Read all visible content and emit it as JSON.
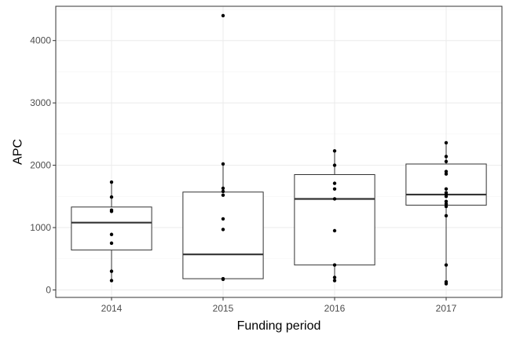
{
  "chart_data": {
    "type": "box",
    "title": "",
    "xlabel": "Funding period",
    "ylabel": "APC",
    "categories": [
      "2014",
      "2015",
      "2016",
      "2017"
    ],
    "y_ticks": [
      0,
      1000,
      2000,
      3000,
      4000
    ],
    "ylim": [
      -120,
      4550
    ],
    "grid": true,
    "boxes": [
      {
        "category": "2014",
        "q1": 640,
        "median": 1080,
        "q3": 1330,
        "whisker_low": 150,
        "whisker_high": 1730
      },
      {
        "category": "2015",
        "q1": 180,
        "median": 570,
        "q3": 1570,
        "whisker_low": 170,
        "whisker_high": 2020
      },
      {
        "category": "2016",
        "q1": 400,
        "median": 1460,
        "q3": 1850,
        "whisker_low": 150,
        "whisker_high": 2230
      },
      {
        "category": "2017",
        "q1": 1360,
        "median": 1530,
        "q3": 2020,
        "whisker_low": 100,
        "whisker_high": 2360
      }
    ],
    "points": [
      {
        "category": "2014",
        "values": [
          1730,
          1490,
          1280,
          1260,
          890,
          750,
          300,
          150
        ]
      },
      {
        "category": "2015",
        "values": [
          4400,
          2020,
          1630,
          1580,
          1520,
          1140,
          970,
          180,
          170
        ]
      },
      {
        "category": "2016",
        "values": [
          2230,
          2000,
          1710,
          1620,
          1460,
          950,
          400,
          200,
          150
        ]
      },
      {
        "category": "2017",
        "values": [
          2360,
          2140,
          2060,
          1900,
          1860,
          1620,
          1560,
          1530,
          1500,
          1420,
          1380,
          1340,
          1190,
          400,
          130,
          100
        ]
      }
    ],
    "colors": {
      "background": "#ffffff",
      "grid_major": "#ebebeb",
      "grid_minor": "#f5f5f5",
      "box_outline": "#333333",
      "median": "#333333",
      "points": "#000000",
      "panel_border": "#333333"
    }
  }
}
